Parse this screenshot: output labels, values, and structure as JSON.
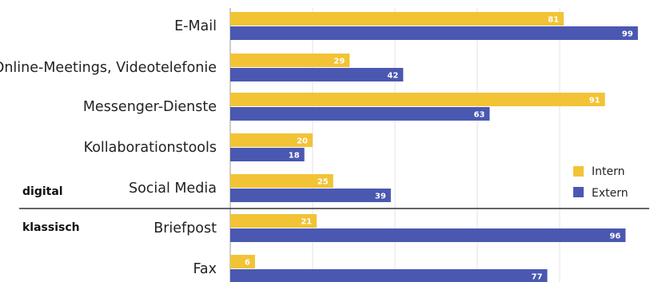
{
  "chart_data": {
    "type": "bar",
    "orientation": "horizontal",
    "categories": [
      "E-Mail",
      "Online-Meetings, Videotelefonie",
      "Messenger-Dienste",
      "Kollaborationstools",
      "Social Media",
      "Briefpost",
      "Fax"
    ],
    "series": [
      {
        "name": "Intern",
        "color": "#f2c335",
        "values": [
          81,
          29,
          91,
          20,
          25,
          21,
          6
        ]
      },
      {
        "name": "Extern",
        "color": "#4a58b1",
        "values": [
          99,
          42,
          63,
          18,
          39,
          96,
          77
        ]
      }
    ],
    "groups": [
      {
        "label": "digital",
        "categories": [
          "E-Mail",
          "Online-Meetings, Videotelefonie",
          "Messenger-Dienste",
          "Kollaborationstools",
          "Social Media"
        ]
      },
      {
        "label": "klassisch",
        "categories": [
          "Briefpost",
          "Fax"
        ]
      }
    ],
    "xlim": [
      0,
      100
    ],
    "grid": true,
    "legend": "right",
    "title": "",
    "xlabel": "",
    "ylabel": ""
  }
}
